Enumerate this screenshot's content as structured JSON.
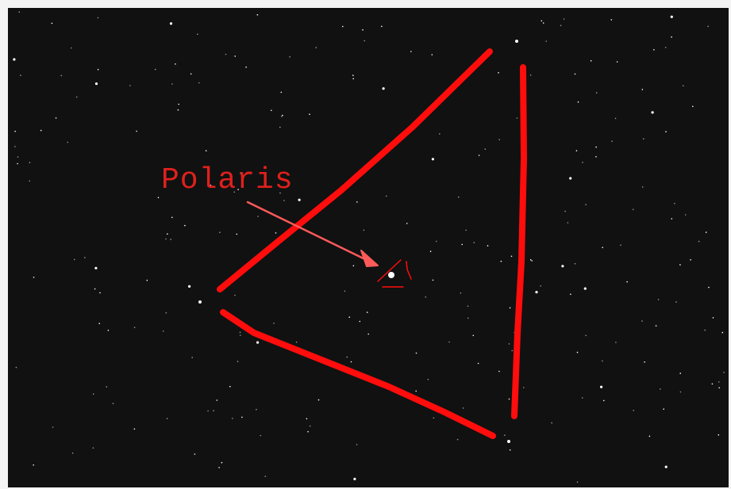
{
  "annotation": {
    "label": "Polaris"
  }
}
